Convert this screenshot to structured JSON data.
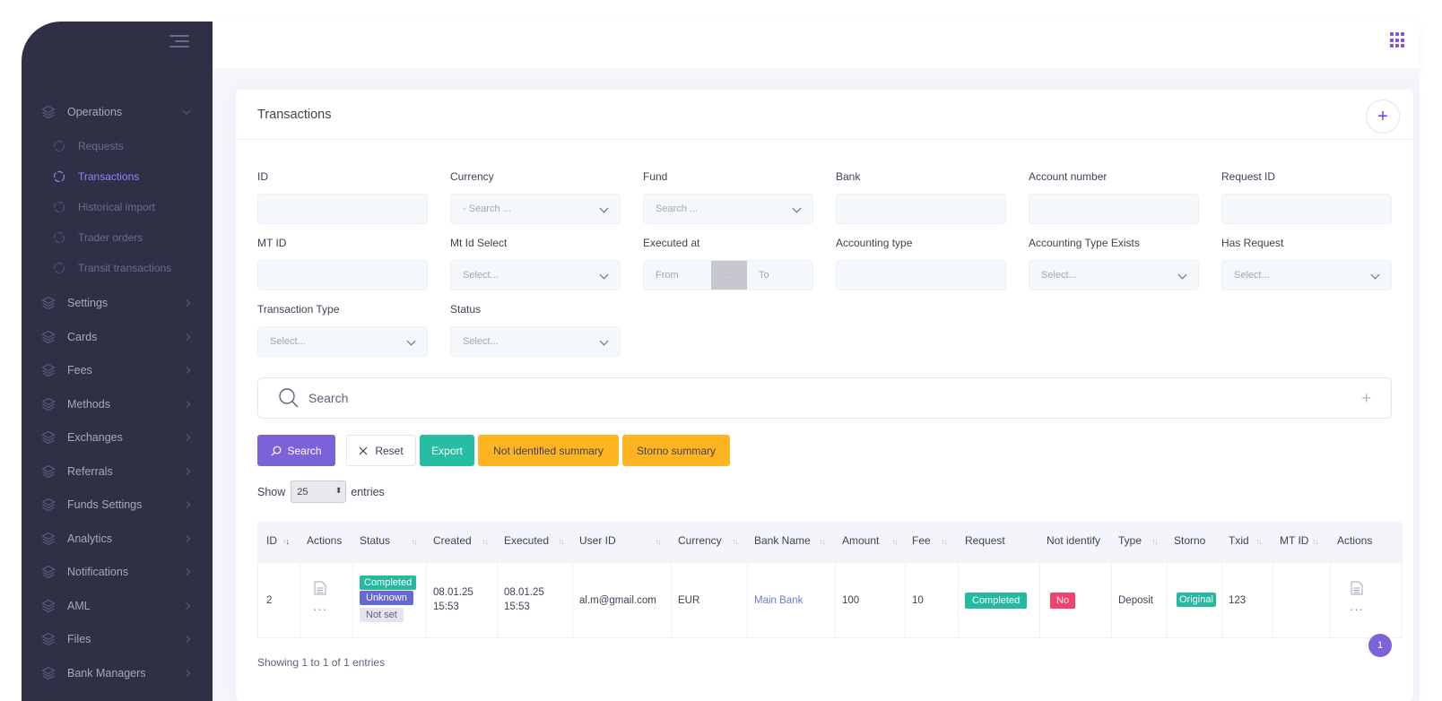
{
  "sidebar": {
    "items": [
      {
        "label": "Operations",
        "icon": "layers-icon",
        "open": true
      },
      {
        "label": "Settings",
        "icon": "layers-icon"
      },
      {
        "label": "Cards",
        "icon": "layers-icon"
      },
      {
        "label": "Fees",
        "icon": "layers-icon"
      },
      {
        "label": "Methods",
        "icon": "layers-icon"
      },
      {
        "label": "Exchanges",
        "icon": "layers-icon"
      },
      {
        "label": "Referrals",
        "icon": "layers-icon"
      },
      {
        "label": "Funds Settings",
        "icon": "layers-icon"
      },
      {
        "label": "Analytics",
        "icon": "layers-icon"
      },
      {
        "label": "Notifications",
        "icon": "layers-icon"
      },
      {
        "label": "AML",
        "icon": "layers-icon"
      },
      {
        "label": "Files",
        "icon": "layers-icon"
      },
      {
        "label": "Bank Managers",
        "icon": "layers-icon"
      }
    ],
    "sub_items": [
      {
        "label": "Requests"
      },
      {
        "label": "Transactions",
        "active": true
      },
      {
        "label": "Historical import"
      },
      {
        "label": "Trader orders"
      },
      {
        "label": "Transit transactions"
      }
    ]
  },
  "card": {
    "title": "Transactions",
    "add_symbol": "+"
  },
  "filters": {
    "id": {
      "label": "ID",
      "value": ""
    },
    "currency": {
      "label": "Currency",
      "placeholder": "- Search ..."
    },
    "fund": {
      "label": "Fund",
      "placeholder": "Search ..."
    },
    "bank": {
      "label": "Bank",
      "value": ""
    },
    "account_number": {
      "label": "Account number",
      "value": ""
    },
    "request_id": {
      "label": "Request ID",
      "value": ""
    },
    "mt_id": {
      "label": "MT ID",
      "value": ""
    },
    "mt_id_select": {
      "label": "Mt Id Select",
      "placeholder": "Select..."
    },
    "executed_at": {
      "label": "Executed at",
      "from": "From",
      "separator": "···",
      "to": "To"
    },
    "accounting_type": {
      "label": "Accounting type",
      "value": ""
    },
    "accounting_type_exists": {
      "label": "Accounting Type Exists",
      "placeholder": "Select..."
    },
    "has_request": {
      "label": "Has Request",
      "placeholder": "Select..."
    },
    "transaction_type": {
      "label": "Transaction Type",
      "placeholder": "Select..."
    },
    "status": {
      "label": "Status",
      "placeholder": "Select..."
    }
  },
  "search": {
    "placeholder": "Search",
    "plus": "+"
  },
  "buttons": {
    "search": "Search",
    "reset": "Reset",
    "export": "Export",
    "not_identified_summary": "Not identified summary",
    "storno_summary": "Storno summary"
  },
  "entries": {
    "show": "Show",
    "page_size": "25",
    "entries": "entries"
  },
  "table": {
    "columns": [
      "ID",
      "Actions",
      "Status",
      "Created",
      "Executed",
      "User ID",
      "Currency",
      "Bank Name",
      "Amount",
      "Fee",
      "Request",
      "Not identify",
      "Type",
      "Storno",
      "Txid",
      "MT ID",
      "Actions"
    ],
    "rows": [
      {
        "id": "2",
        "status_badges": [
          "Completed",
          "Unknown",
          "Not set"
        ],
        "created_date": "08.01.25",
        "created_time": "15:53",
        "executed_date": "08.01.25",
        "executed_time": "15:53",
        "user_id": "al.m@gmail.com",
        "currency": "EUR",
        "bank_name": "Main Bank",
        "amount": "100",
        "fee": "10",
        "request": "Completed",
        "not_identify": "No",
        "type": "Deposit",
        "storno": "Original",
        "txid": "123",
        "mt_id": "",
        "more": "···"
      }
    ]
  },
  "footer": {
    "info": "Showing 1 to 1 of 1 entries"
  },
  "pagination": {
    "prev": "‹",
    "current": "1",
    "next": "›"
  },
  "colors": {
    "accent": "#7a62d9",
    "success": "#26b9a0",
    "warning": "#ffb422",
    "danger": "#f1416c",
    "sidebar": "#2f2f45"
  }
}
